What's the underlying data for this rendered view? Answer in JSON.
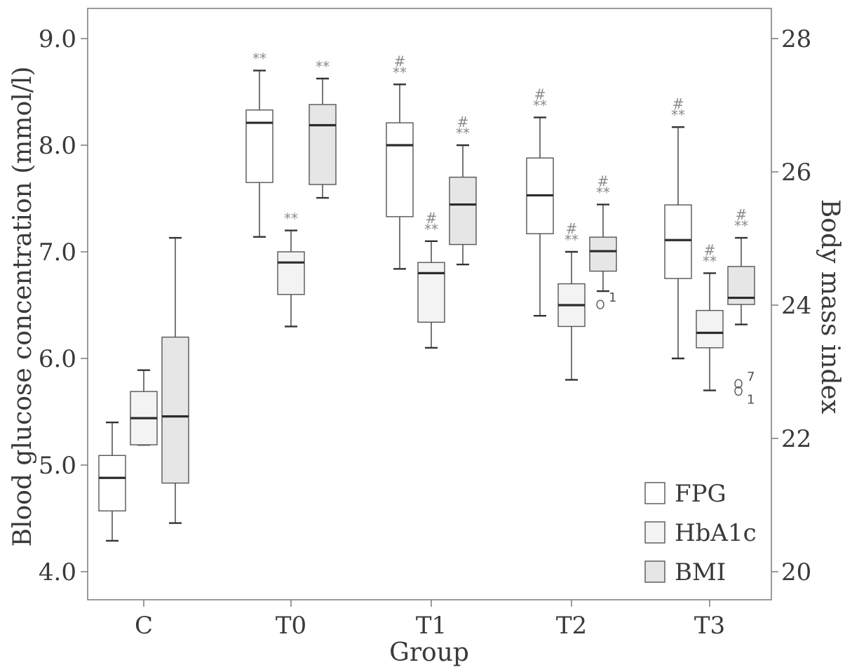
{
  "chart_data": {
    "type": "box",
    "xlabel": "Group",
    "ylabel_left": "Blood glucose concentration (mmol/l)",
    "ylabel_right": "Body mass index",
    "ylim_left": [
      4.0,
      9.0
    ],
    "ylim_right": [
      20,
      28
    ],
    "yticks_left": [
      "4.0",
      "5.0",
      "6.0",
      "7.0",
      "8.0",
      "9.0"
    ],
    "yticks_right": [
      "20",
      "22",
      "24",
      "26",
      "28"
    ],
    "categories": [
      "C",
      "T0",
      "T1",
      "T2",
      "T3"
    ],
    "legend": {
      "position": "bottom-right",
      "entries": [
        {
          "label": "FPG",
          "color": "#ffffff"
        },
        {
          "label": "HbA1c",
          "color": "#f3f3f3"
        },
        {
          "label": "BMI",
          "color": "#e6e6e6"
        }
      ]
    },
    "series": [
      {
        "name": "FPG",
        "axis": "left",
        "fill": "#ffffff",
        "boxes": [
          {
            "group": "C",
            "min": 4.29,
            "q1": 4.57,
            "median": 4.88,
            "q3": 5.09,
            "max": 5.4,
            "sig": []
          },
          {
            "group": "T0",
            "min": 7.14,
            "q1": 7.65,
            "median": 8.21,
            "q3": 8.33,
            "max": 8.7,
            "sig": [
              "**"
            ]
          },
          {
            "group": "T1",
            "min": 6.84,
            "q1": 7.33,
            "median": 8.0,
            "q3": 8.21,
            "max": 8.57,
            "sig": [
              "#",
              "**"
            ]
          },
          {
            "group": "T2",
            "min": 6.4,
            "q1": 7.17,
            "median": 7.53,
            "q3": 7.88,
            "max": 8.26,
            "sig": [
              "#",
              "**"
            ]
          },
          {
            "group": "T3",
            "min": 6.0,
            "q1": 6.75,
            "median": 7.11,
            "q3": 7.44,
            "max": 8.17,
            "sig": [
              "#",
              "**"
            ]
          }
        ]
      },
      {
        "name": "HbA1c",
        "axis": "left",
        "fill": "#f3f3f3",
        "boxes": [
          {
            "group": "C",
            "min": 5.19,
            "q1": 5.19,
            "median": 5.44,
            "q3": 5.69,
            "max": 5.89,
            "sig": []
          },
          {
            "group": "T0",
            "min": 6.3,
            "q1": 6.6,
            "median": 6.9,
            "q3": 7.0,
            "max": 7.2,
            "sig": [
              "**"
            ]
          },
          {
            "group": "T1",
            "min": 6.1,
            "q1": 6.34,
            "median": 6.8,
            "q3": 6.9,
            "max": 7.1,
            "sig": [
              "#",
              "**"
            ]
          },
          {
            "group": "T2",
            "min": 5.8,
            "q1": 6.3,
            "median": 6.5,
            "q3": 6.7,
            "max": 7.0,
            "sig": [
              "#",
              "**"
            ]
          },
          {
            "group": "T3",
            "min": 5.7,
            "q1": 6.1,
            "median": 6.24,
            "q3": 6.45,
            "max": 6.8,
            "sig": [
              "#",
              "**"
            ]
          }
        ]
      },
      {
        "name": "BMI",
        "axis": "right",
        "fill": "#e6e6e6",
        "boxes": [
          {
            "group": "C",
            "min": 20.73,
            "q1": 21.33,
            "median": 22.33,
            "q3": 23.52,
            "max": 25.01,
            "sig": [],
            "outliers": []
          },
          {
            "group": "T0",
            "min": 25.61,
            "q1": 25.81,
            "median": 26.7,
            "q3": 27.01,
            "max": 27.4,
            "sig": [
              "**"
            ],
            "outliers": []
          },
          {
            "group": "T1",
            "min": 24.61,
            "q1": 24.91,
            "median": 25.51,
            "q3": 25.92,
            "max": 26.4,
            "sig": [
              "#",
              "**"
            ],
            "outliers": []
          },
          {
            "group": "T2",
            "min": 24.21,
            "q1": 24.51,
            "median": 24.81,
            "q3": 25.02,
            "max": 25.51,
            "sig": [
              "#",
              "**"
            ],
            "outliers": [
              {
                "value": 24.01,
                "label": "1"
              }
            ]
          },
          {
            "group": "T3",
            "min": 23.71,
            "q1": 24.01,
            "median": 24.11,
            "q3": 24.58,
            "max": 25.01,
            "sig": [
              "#",
              "**"
            ],
            "outliers": [
              {
                "value": 22.82,
                "label": "7"
              },
              {
                "value": 22.71,
                "label": "1"
              }
            ]
          }
        ]
      }
    ]
  }
}
